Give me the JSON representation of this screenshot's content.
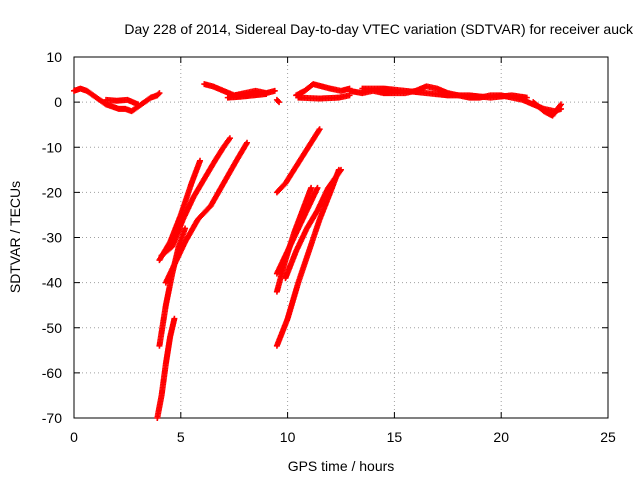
{
  "chart_data": {
    "type": "scatter",
    "title": "Day 228 of 2014, Sidereal Day-to-day VTEC variation (SDTVAR) for receiver auck",
    "xlabel": "GPS time / hours",
    "ylabel": "SDTVAR / TECUs",
    "xlim": [
      0,
      25
    ],
    "ylim": [
      -70,
      10
    ],
    "xticks": [
      0,
      5,
      10,
      15,
      20,
      25
    ],
    "yticks": [
      10,
      0,
      -10,
      -20,
      -30,
      -40,
      -50,
      -60,
      -70
    ],
    "grid": true,
    "series": [
      {
        "name": "SDTVAR",
        "color": "#ff0000",
        "marker": "plus",
        "segments": [
          [
            [
              0,
              2.5
            ],
            [
              0.3,
              3
            ],
            [
              0.6,
              2.5
            ],
            [
              0.9,
              1.5
            ],
            [
              1.2,
              0.5
            ],
            [
              1.5,
              -0.5
            ],
            [
              1.8,
              -1
            ],
            [
              2.1,
              -1.5
            ],
            [
              2.4,
              -1.5
            ],
            [
              2.7,
              -2
            ],
            [
              3.0,
              -1
            ],
            [
              3.3,
              0
            ],
            [
              3.6,
              1
            ],
            [
              3.9,
              1.5
            ],
            [
              4.0,
              2
            ]
          ],
          [
            [
              1.5,
              0.5
            ],
            [
              2.0,
              0.3
            ],
            [
              2.5,
              0.5
            ],
            [
              3.0,
              -0.5
            ]
          ],
          [
            [
              6.1,
              4
            ],
            [
              6.5,
              3.5
            ],
            [
              7.0,
              2.5
            ],
            [
              7.5,
              1.5
            ],
            [
              8.0,
              2
            ],
            [
              8.5,
              2.5
            ],
            [
              9.0,
              2
            ],
            [
              9.4,
              2.5
            ]
          ],
          [
            [
              7.2,
              1
            ],
            [
              7.8,
              1.2
            ],
            [
              8.4,
              1.5
            ],
            [
              9.0,
              1.8
            ]
          ],
          [
            [
              9.5,
              0.5
            ],
            [
              9.6,
              0
            ]
          ],
          [
            [
              10.4,
              1.5
            ],
            [
              10.8,
              2.5
            ],
            [
              11.2,
              4
            ],
            [
              11.6,
              3.5
            ],
            [
              12.0,
              3
            ],
            [
              12.5,
              2.5
            ],
            [
              12.9,
              3
            ]
          ],
          [
            [
              10.5,
              1
            ],
            [
              11.5,
              0.8
            ],
            [
              12.4,
              1
            ],
            [
              12.9,
              1.5
            ]
          ],
          [
            [
              12.9,
              2.5
            ],
            [
              13.5,
              2
            ],
            [
              14.0,
              2.5
            ],
            [
              14.5,
              2
            ],
            [
              15.0,
              2
            ],
            [
              15.5,
              2
            ],
            [
              16.0,
              2.5
            ],
            [
              16.5,
              3.5
            ],
            [
              17.0,
              3
            ],
            [
              17.5,
              2
            ],
            [
              18.0,
              1.5
            ],
            [
              18.5,
              1
            ],
            [
              19.0,
              1
            ],
            [
              19.5,
              1.5
            ],
            [
              20.0,
              1.5
            ],
            [
              20.5,
              1
            ],
            [
              21.0,
              0.5
            ],
            [
              21.5,
              -0.5
            ],
            [
              22.0,
              -1.5
            ],
            [
              22.5,
              -2
            ],
            [
              22.8,
              -1.5
            ]
          ],
          [
            [
              13.5,
              3
            ],
            [
              14.5,
              3
            ],
            [
              15.5,
              2.5
            ],
            [
              16.5,
              2
            ],
            [
              17.5,
              1.5
            ],
            [
              18.5,
              1.5
            ],
            [
              19.5,
              1
            ],
            [
              20.5,
              1.5
            ],
            [
              21.2,
              1
            ]
          ],
          [
            [
              21.5,
              0
            ],
            [
              22.0,
              -2
            ],
            [
              22.4,
              -3
            ],
            [
              22.8,
              -0.5
            ]
          ],
          [
            [
              4.0,
              -35
            ],
            [
              4.5,
              -31
            ],
            [
              5.0,
              -25
            ],
            [
              5.5,
              -18
            ],
            [
              5.9,
              -13
            ]
          ],
          [
            [
              4.1,
              -34
            ],
            [
              4.6,
              -32
            ],
            [
              5.1,
              -26
            ],
            [
              5.6,
              -21
            ],
            [
              6.1,
              -17
            ],
            [
              6.6,
              -13
            ],
            [
              7.0,
              -10
            ],
            [
              7.3,
              -8
            ]
          ],
          [
            [
              4.3,
              -40
            ],
            [
              4.7,
              -36
            ],
            [
              5.2,
              -31
            ],
            [
              5.8,
              -26
            ],
            [
              6.4,
              -23
            ],
            [
              7.0,
              -18
            ],
            [
              7.6,
              -13
            ],
            [
              8.1,
              -9
            ]
          ],
          [
            [
              4.0,
              -54
            ],
            [
              4.3,
              -45
            ],
            [
              4.6,
              -38
            ],
            [
              4.9,
              -32
            ],
            [
              5.2,
              -28
            ]
          ],
          [
            [
              3.9,
              -70
            ],
            [
              4.1,
              -65
            ],
            [
              4.3,
              -58
            ],
            [
              4.5,
              -52
            ],
            [
              4.7,
              -48
            ]
          ],
          [
            [
              9.5,
              -20
            ],
            [
              9.9,
              -18
            ],
            [
              10.3,
              -15
            ],
            [
              10.7,
              -12
            ],
            [
              11.1,
              -9
            ],
            [
              11.5,
              -6
            ]
          ],
          [
            [
              9.5,
              -38
            ],
            [
              9.9,
              -34
            ],
            [
              10.3,
              -30
            ],
            [
              10.7,
              -26
            ],
            [
              11.1,
              -22
            ],
            [
              11.4,
              -19
            ]
          ],
          [
            [
              9.5,
              -42
            ],
            [
              9.9,
              -35
            ],
            [
              10.3,
              -29
            ],
            [
              10.7,
              -24
            ],
            [
              11.1,
              -19
            ]
          ],
          [
            [
              9.5,
              -54
            ],
            [
              10.0,
              -48
            ],
            [
              10.5,
              -40
            ],
            [
              11.0,
              -33
            ],
            [
              11.5,
              -26
            ],
            [
              12.0,
              -20
            ],
            [
              12.4,
              -15
            ]
          ],
          [
            [
              9.9,
              -39
            ],
            [
              10.4,
              -33
            ],
            [
              10.9,
              -28
            ],
            [
              11.4,
              -24
            ],
            [
              11.9,
              -19
            ],
            [
              12.5,
              -15
            ]
          ]
        ]
      }
    ]
  }
}
